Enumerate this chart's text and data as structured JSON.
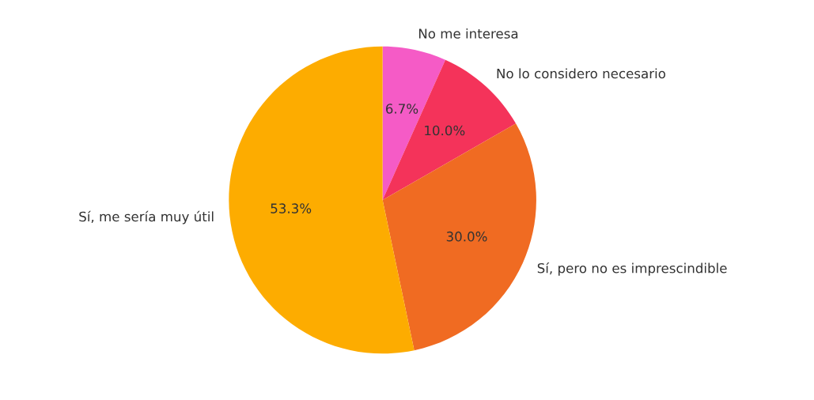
{
  "chart_data": {
    "type": "pie",
    "categories": [
      "No me interesa",
      "No lo considero necesario",
      "Sí, pero no es imprescindible",
      "Sí, me sería muy útil"
    ],
    "values": [
      6.7,
      10.0,
      30.0,
      53.3
    ],
    "colors": [
      "#f55bc6",
      "#f4335a",
      "#f06b22",
      "#fdac00"
    ],
    "value_labels": [
      "6.7%",
      "10.0%",
      "30.0%",
      "53.3%"
    ]
  }
}
